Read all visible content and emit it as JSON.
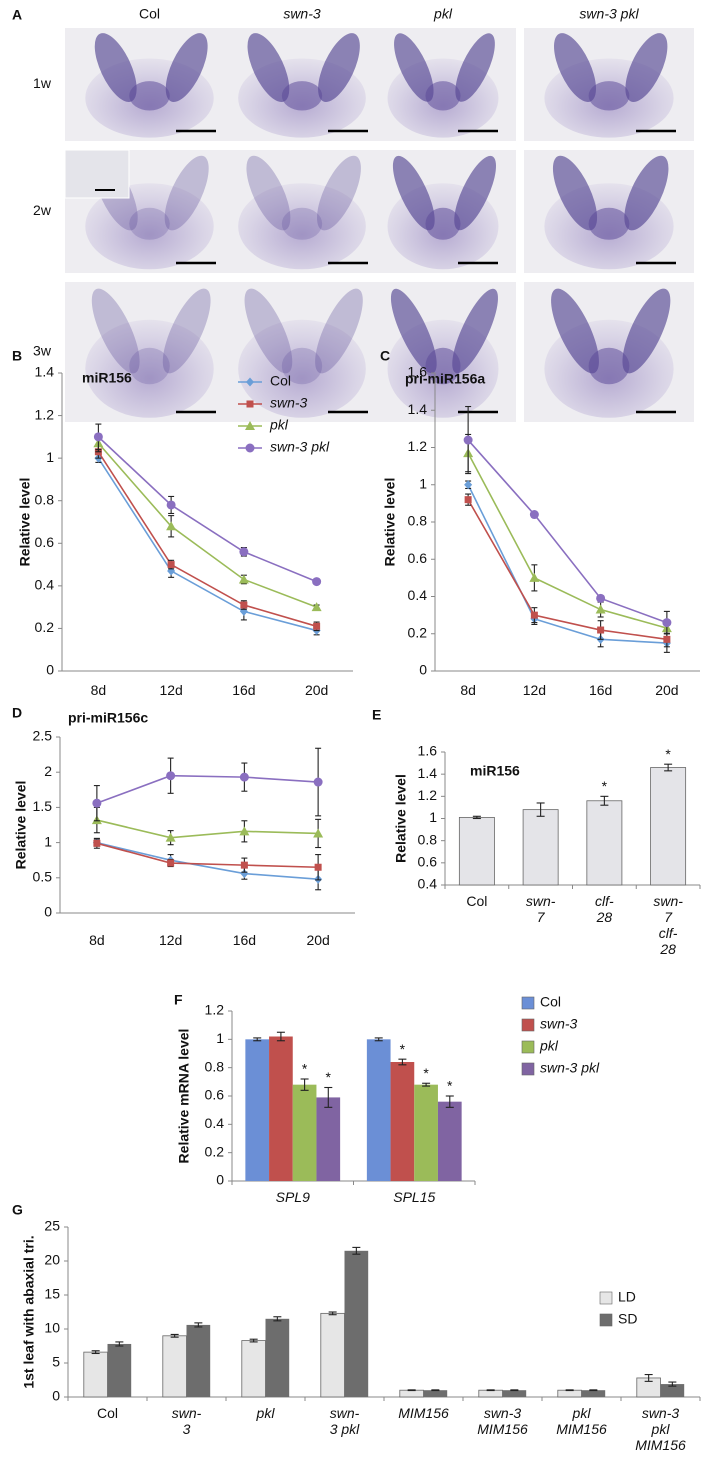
{
  "panel_a": {
    "label": "A",
    "columns": [
      {
        "text": "Col",
        "italic": false
      },
      {
        "text": "swn-3",
        "italic": true
      },
      {
        "text": "pkl",
        "italic": true
      },
      {
        "text": "swn-3 pkl",
        "italic": true
      }
    ],
    "rows": [
      "1w",
      "2w",
      "3w"
    ]
  },
  "chart_data": [
    {
      "type": "line",
      "panel": "B",
      "title": "miR156",
      "y_label": "Relative level",
      "categories": [
        "8d",
        "12d",
        "16d",
        "20d"
      ],
      "category_italic": [
        false,
        false,
        false,
        false
      ],
      "ylim": [
        0,
        1.4
      ],
      "yticks": [
        0,
        0.2,
        0.4,
        0.6,
        0.8,
        1,
        1.2,
        1.4
      ],
      "grid": false,
      "legend": "top-right",
      "series": [
        {
          "name": "Col",
          "italic": false,
          "color": "#6a9ed8",
          "marker": "diamond",
          "values": [
            1.0,
            0.47,
            0.28,
            0.19
          ],
          "errors": [
            0.02,
            0.03,
            0.04,
            0.02
          ]
        },
        {
          "name": "swn-3",
          "italic": true,
          "color": "#c0504d",
          "marker": "square",
          "values": [
            1.03,
            0.5,
            0.31,
            0.21
          ],
          "errors": [
            0.03,
            0.02,
            0.02,
            0.02
          ]
        },
        {
          "name": "pkl",
          "italic": true,
          "color": "#9bbb59",
          "marker": "triangle",
          "values": [
            1.07,
            0.68,
            0.43,
            0.3
          ],
          "errors": [
            0.04,
            0.05,
            0.02,
            0.01
          ]
        },
        {
          "name": "swn-3 pkl",
          "italic": true,
          "color": "#8a6fc0",
          "marker": "circle",
          "values": [
            1.1,
            0.78,
            0.56,
            0.42
          ],
          "errors": [
            0.06,
            0.04,
            0.02,
            0.01
          ]
        }
      ]
    },
    {
      "type": "line",
      "panel": "C",
      "title": "pri-miR156a",
      "y_label": "Relative level",
      "categories": [
        "8d",
        "12d",
        "16d",
        "20d"
      ],
      "category_italic": [
        false,
        false,
        false,
        false
      ],
      "ylim": [
        0,
        1.6
      ],
      "yticks": [
        0,
        0.2,
        0.4,
        0.6,
        0.8,
        1,
        1.2,
        1.4,
        1.6
      ],
      "grid": false,
      "series": [
        {
          "color": "#6a9ed8",
          "marker": "diamond",
          "values": [
            1.0,
            0.28,
            0.17,
            0.15
          ],
          "errors": [
            0.02,
            0.03,
            0.04,
            0.05
          ]
        },
        {
          "color": "#c0504d",
          "marker": "square",
          "values": [
            0.92,
            0.3,
            0.22,
            0.17
          ],
          "errors": [
            0.03,
            0.04,
            0.05,
            0.04
          ]
        },
        {
          "color": "#9bbb59",
          "marker": "triangle",
          "values": [
            1.17,
            0.5,
            0.33,
            0.23
          ],
          "errors": [
            0.1,
            0.07,
            0.04,
            0.03
          ]
        },
        {
          "color": "#8a6fc0",
          "marker": "circle",
          "values": [
            1.24,
            0.84,
            0.39,
            0.26
          ],
          "errors": [
            0.18,
            0.01,
            0.01,
            0.06
          ]
        }
      ]
    },
    {
      "type": "line",
      "panel": "D",
      "title": "pri-miR156c",
      "y_label": "Relative level",
      "categories": [
        "8d",
        "12d",
        "16d",
        "20d"
      ],
      "category_italic": [
        false,
        false,
        false,
        false
      ],
      "ylim": [
        0,
        2.5
      ],
      "yticks": [
        0,
        0.5,
        1,
        1.5,
        2,
        2.5
      ],
      "grid": false,
      "series": [
        {
          "color": "#6a9ed8",
          "marker": "diamond",
          "values": [
            1.0,
            0.75,
            0.56,
            0.48
          ],
          "errors": [
            0.05,
            0.08,
            0.08,
            0.15
          ]
        },
        {
          "color": "#c0504d",
          "marker": "square",
          "values": [
            0.99,
            0.71,
            0.68,
            0.65
          ],
          "errors": [
            0.07,
            0.05,
            0.1,
            0.18
          ]
        },
        {
          "color": "#9bbb59",
          "marker": "triangle",
          "values": [
            1.32,
            1.07,
            1.16,
            1.13
          ],
          "errors": [
            0.18,
            0.1,
            0.15,
            0.2
          ]
        },
        {
          "color": "#8a6fc0",
          "marker": "circle",
          "values": [
            1.56,
            1.95,
            1.93,
            1.86
          ],
          "errors": [
            0.25,
            0.25,
            0.2,
            0.48
          ]
        }
      ]
    },
    {
      "type": "bar",
      "panel": "E",
      "title": "miR156",
      "y_label": "Relative level",
      "categories": [
        "Col",
        "swn-7",
        "clf-28",
        "swn-7 clf-28"
      ],
      "category_italic": [
        false,
        true,
        true,
        true
      ],
      "ylim": [
        0.4,
        1.6
      ],
      "yticks": [
        0.4,
        0.6,
        0.8,
        1,
        1.2,
        1.4,
        1.6
      ],
      "grid": false,
      "color": "#e4e4e8",
      "values": [
        1.01,
        1.08,
        1.16,
        1.46
      ],
      "errors": [
        0.01,
        0.06,
        0.04,
        0.03
      ],
      "annotations": [
        {
          "category": "clf-28",
          "text": "*"
        },
        {
          "category": "swn-7 clf-28",
          "text": "*"
        }
      ]
    },
    {
      "type": "bar",
      "panel": "F",
      "y_label": "Relative mRNA level",
      "categories": [
        "SPL9",
        "SPL15"
      ],
      "category_italic": [
        true,
        true
      ],
      "ylim": [
        0,
        1.2
      ],
      "yticks": [
        0,
        0.2,
        0.4,
        0.6,
        0.8,
        1,
        1.2
      ],
      "grid": false,
      "legend": "right",
      "series": [
        {
          "name": "Col",
          "italic": false,
          "color": "#6b8fd6",
          "values": [
            1.0,
            1.0
          ],
          "errors": [
            0.01,
            0.01
          ]
        },
        {
          "name": "swn-3",
          "italic": true,
          "color": "#c0504d",
          "values": [
            1.02,
            0.84
          ],
          "errors": [
            0.03,
            0.02
          ]
        },
        {
          "name": "pkl",
          "italic": true,
          "color": "#9bbb59",
          "values": [
            0.68,
            0.68
          ],
          "errors": [
            0.04,
            0.01
          ]
        },
        {
          "name": "swn-3 pkl",
          "italic": true,
          "color": "#8064a2",
          "values": [
            0.59,
            0.56
          ],
          "errors": [
            0.07,
            0.04
          ]
        }
      ],
      "annotations": [
        {
          "category": "SPL9",
          "series": "pkl",
          "text": "*"
        },
        {
          "category": "SPL9",
          "series": "swn-3 pkl",
          "text": "*"
        },
        {
          "category": "SPL15",
          "series": "swn-3",
          "text": "*"
        },
        {
          "category": "SPL15",
          "series": "pkl",
          "text": "*"
        },
        {
          "category": "SPL15",
          "series": "swn-3 pkl",
          "text": "*"
        }
      ]
    },
    {
      "type": "bar",
      "panel": "G",
      "y_label": "1st leaf with abaxial tri.",
      "categories": [
        "Col",
        "swn-3",
        "pkl",
        "swn-3 pkl",
        "MIM156",
        "swn-3 MIM156",
        "pkl MIM156",
        "swn-3 pkl MIM156"
      ],
      "category_italic": [
        false,
        true,
        true,
        true,
        true,
        true,
        true,
        true
      ],
      "ylim": [
        0,
        25
      ],
      "yticks": [
        0,
        5,
        10,
        15,
        20,
        25
      ],
      "grid": false,
      "legend": "right",
      "series": [
        {
          "name": "LD",
          "italic": false,
          "color": "#e6e6e6",
          "values": [
            6.6,
            9.0,
            8.3,
            12.3,
            1.0,
            1.0,
            1.0,
            2.8
          ],
          "errors": [
            0.2,
            0.2,
            0.2,
            0.2,
            0.05,
            0.05,
            0.05,
            0.5
          ]
        },
        {
          "name": "SD",
          "italic": false,
          "color": "#6d6d6d",
          "values": [
            7.8,
            10.6,
            11.5,
            21.5,
            1.0,
            1.0,
            1.0,
            1.9
          ],
          "errors": [
            0.3,
            0.3,
            0.3,
            0.5,
            0.05,
            0.05,
            0.05,
            0.3
          ]
        }
      ]
    }
  ]
}
